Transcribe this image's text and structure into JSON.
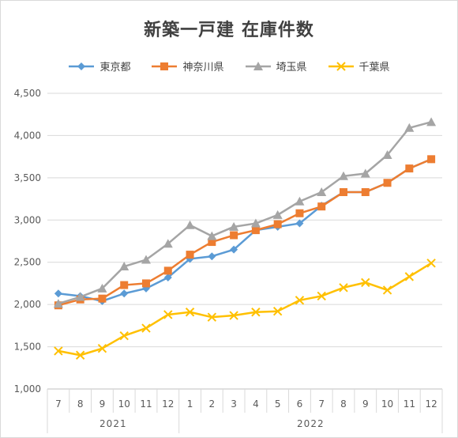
{
  "chart_data": {
    "type": "line",
    "title": "新築一戸建 在庫件数",
    "xlabel": "",
    "ylabel": "",
    "ylim": [
      1000,
      4500
    ],
    "y_ticks": [
      "1,000",
      "1,500",
      "2,000",
      "2,500",
      "3,000",
      "3,500",
      "4,000",
      "4,500"
    ],
    "y_tick_values": [
      1000,
      1500,
      2000,
      2500,
      3000,
      3500,
      4000,
      4500
    ],
    "categories": [
      "7",
      "8",
      "9",
      "10",
      "11",
      "12",
      "1",
      "2",
      "3",
      "4",
      "5",
      "6",
      "7",
      "8",
      "9",
      "10",
      "11",
      "12"
    ],
    "year_groups": [
      {
        "label": "2021",
        "count": 6
      },
      {
        "label": "2022",
        "count": 12
      }
    ],
    "grid": true,
    "legend_position": "top",
    "series": [
      {
        "name": "東京都",
        "color": "#5b9bd5",
        "marker": "diamond",
        "values": [
          2130,
          2100,
          2040,
          2130,
          2190,
          2320,
          2540,
          2570,
          2650,
          2880,
          2920,
          2960,
          3170,
          3330,
          3330,
          3440,
          3610,
          3720
        ]
      },
      {
        "name": "神奈川県",
        "color": "#ed7d31",
        "marker": "square",
        "values": [
          1990,
          2060,
          2070,
          2230,
          2250,
          2400,
          2590,
          2740,
          2820,
          2880,
          2950,
          3080,
          3160,
          3330,
          3330,
          3440,
          3610,
          3720
        ]
      },
      {
        "name": "埼玉県",
        "color": "#a5a5a5",
        "marker": "triangle",
        "values": [
          2010,
          2090,
          2190,
          2450,
          2530,
          2720,
          2940,
          2810,
          2920,
          2960,
          3060,
          3220,
          3330,
          3520,
          3550,
          3770,
          4090,
          4160
        ]
      },
      {
        "name": "千葉県",
        "color": "#ffc000",
        "marker": "x",
        "values": [
          1450,
          1400,
          1480,
          1630,
          1720,
          1880,
          1910,
          1850,
          1870,
          1910,
          1920,
          2050,
          2100,
          2200,
          2260,
          2170,
          2330,
          2490
        ]
      }
    ]
  }
}
